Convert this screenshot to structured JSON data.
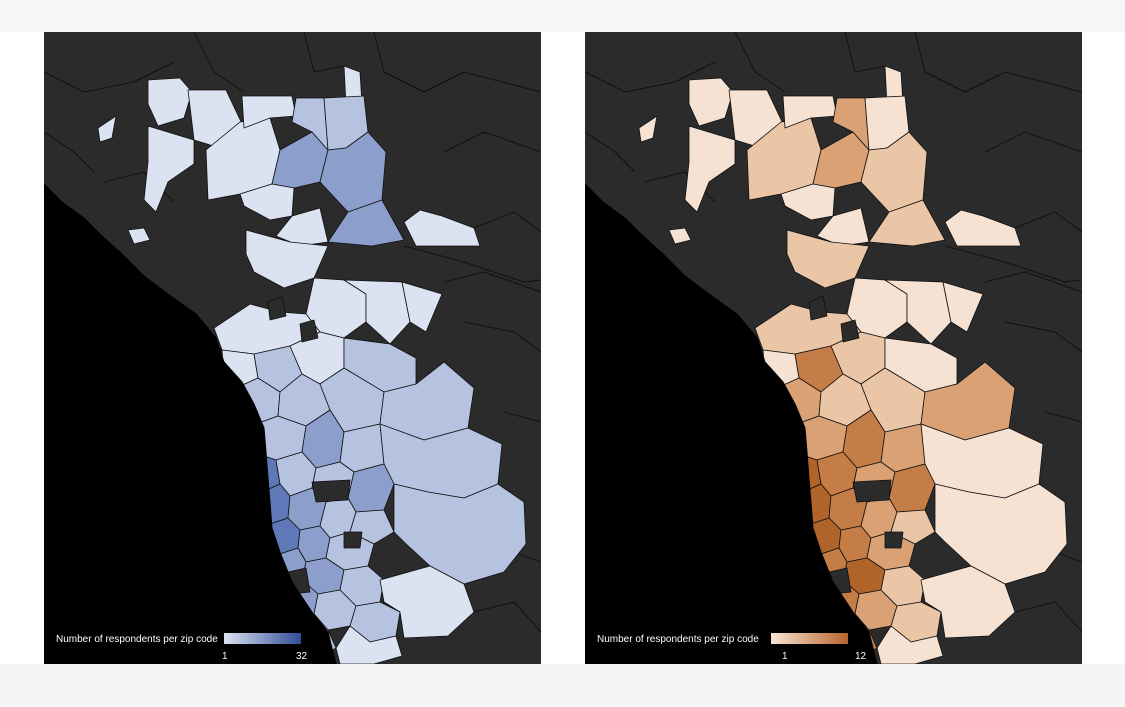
{
  "maps": [
    {
      "legend": {
        "title": "Number of respondents per zip code",
        "min": "1",
        "max": "32",
        "color_low": "#dde3f2",
        "color_high": "#2f4c96"
      },
      "colors": {
        "ocean": "#000000",
        "land": "#2b2b2b",
        "border": "#111111",
        "light": "#dbe2f1",
        "mid": "#b6c3e0",
        "strong": "#8c9fcc",
        "dark": "#5f78b8",
        "darkest": "#3a58a6"
      }
    },
    {
      "legend": {
        "title": "Number of respondents per zip code",
        "min": "1",
        "max": "12",
        "color_low": "#f7e3d3",
        "color_high": "#b8652c"
      },
      "colors": {
        "ocean": "#000000",
        "land": "#2b2b2b",
        "border": "#111111",
        "light": "#f6e2d3",
        "mid": "#ebc6a6",
        "strong": "#d9a174",
        "dark": "#c57d48",
        "darkest": "#b0642a"
      }
    }
  ]
}
